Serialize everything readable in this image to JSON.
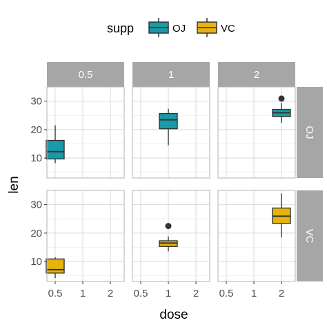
{
  "chart_data": {
    "type": "box",
    "facet_cols_var": "dose",
    "facet_rows_var": "supp",
    "col_strips": [
      "0.5",
      "1",
      "2"
    ],
    "row_strips": [
      "OJ",
      "VC"
    ],
    "x_categories": [
      "0.5",
      "1",
      "2"
    ],
    "y_ticks": [
      "10",
      "20",
      "30"
    ],
    "ylim": [
      3,
      35
    ],
    "xlabel": "dose",
    "ylabel": "len",
    "legend": {
      "title": "supp",
      "position": "top",
      "entries": [
        {
          "label": "OJ",
          "color": "#1a9aa8"
        },
        {
          "label": "VC",
          "color": "#e6b40c"
        }
      ]
    },
    "colors": {
      "OJ": "#1a9aa8",
      "VC": "#e6b40c",
      "strip_bg": "#a6a6a6",
      "grid": "#d9d9d9",
      "panel_border": "#b3b3b3"
    },
    "boxes": [
      {
        "supp": "OJ",
        "dose": "0.5",
        "min": 8.2,
        "q1": 9.7,
        "median": 12.25,
        "q3": 16.2,
        "max": 21.5,
        "outliers": []
      },
      {
        "supp": "OJ",
        "dose": "1",
        "min": 14.5,
        "q1": 20.3,
        "median": 23.45,
        "q3": 25.65,
        "max": 27.3,
        "outliers": []
      },
      {
        "supp": "OJ",
        "dose": "2",
        "min": 22.4,
        "q1": 24.6,
        "median": 25.95,
        "q3": 27.1,
        "max": 29.4,
        "outliers": [
          30.9
        ]
      },
      {
        "supp": "VC",
        "dose": "0.5",
        "min": 4.2,
        "q1": 5.95,
        "median": 7.15,
        "q3": 10.9,
        "max": 11.5,
        "outliers": []
      },
      {
        "supp": "VC",
        "dose": "1",
        "min": 13.6,
        "q1": 15.3,
        "median": 16.5,
        "q3": 17.3,
        "max": 18.8,
        "outliers": [
          22.5
        ]
      },
      {
        "supp": "VC",
        "dose": "2",
        "min": 18.5,
        "q1": 23.4,
        "median": 25.95,
        "q3": 28.8,
        "max": 33.9,
        "outliers": []
      }
    ]
  }
}
